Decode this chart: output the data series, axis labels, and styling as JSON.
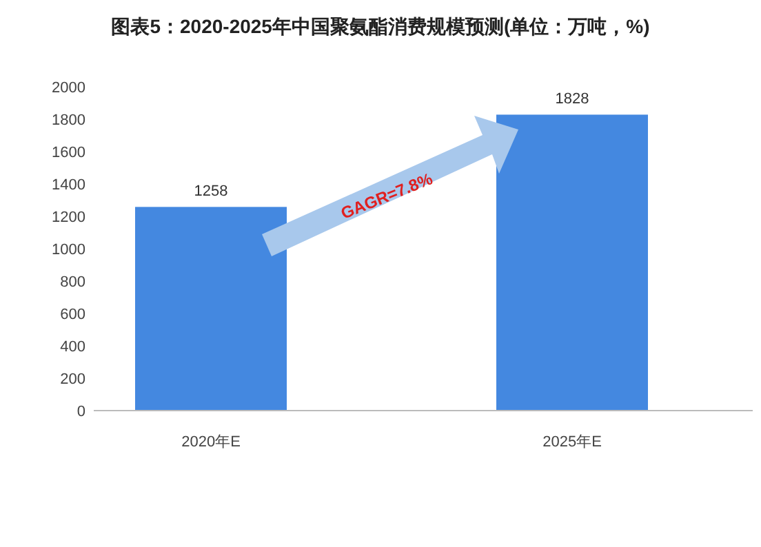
{
  "chart_data": {
    "type": "bar",
    "title": "图表5：2020-2025年中国聚氨酯消费规模预测(单位：万吨，%)",
    "categories": [
      "2020年E",
      "2025年E"
    ],
    "values": [
      1258,
      1828
    ],
    "color": "#4488e0",
    "ylim": [
      0,
      2000
    ],
    "yticks": [
      0,
      200,
      400,
      600,
      800,
      1000,
      1200,
      1400,
      1600,
      1800,
      2000
    ],
    "data_labels": true,
    "annotations": [
      "GAGR=7.8%"
    ]
  }
}
